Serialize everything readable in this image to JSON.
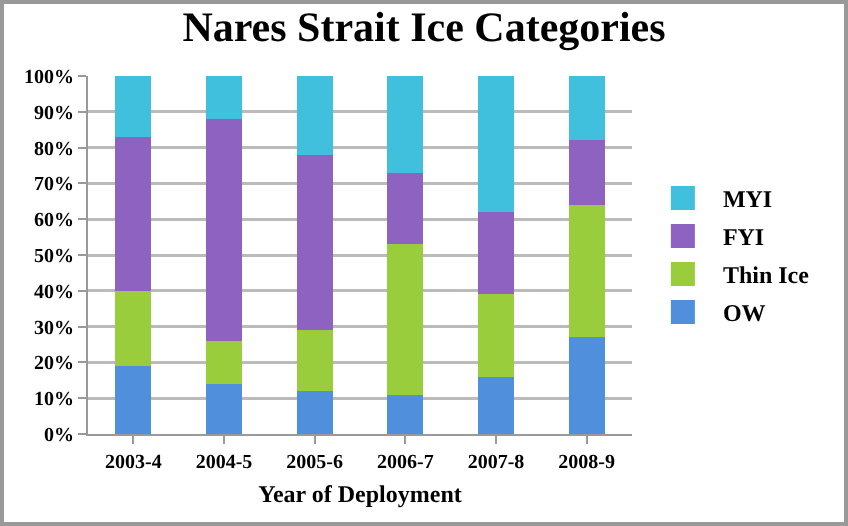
{
  "chart_data": {
    "type": "bar",
    "title": "Nares Strait Ice Categories",
    "xlabel": "Year of Deployment",
    "stacked": true,
    "categories": [
      "2003-4",
      "2004-5",
      "2005-6",
      "2006-7",
      "2007-8",
      "2008-9"
    ],
    "series": [
      {
        "name": "OW",
        "color": "#4f8fdc",
        "values": [
          19,
          14,
          12,
          11,
          16,
          27
        ]
      },
      {
        "name": "Thin Ice",
        "color": "#9acd3c",
        "values": [
          21,
          12,
          17,
          42,
          23,
          37
        ]
      },
      {
        "name": "FYI",
        "color": "#8e62c0",
        "values": [
          43,
          62,
          49,
          20,
          23,
          18
        ]
      },
      {
        "name": "MYI",
        "color": "#40c0dc",
        "values": [
          17,
          12,
          22,
          27,
          38,
          18
        ]
      }
    ],
    "ylim": [
      0,
      100
    ],
    "yticks": [
      {
        "value": 0,
        "label": "0%"
      },
      {
        "value": 10,
        "label": "10%"
      },
      {
        "value": 20,
        "label": "20%"
      },
      {
        "value": 30,
        "label": "30%"
      },
      {
        "value": 40,
        "label": "40%"
      },
      {
        "value": 50,
        "label": "50%"
      },
      {
        "value": 60,
        "label": "60%"
      },
      {
        "value": 70,
        "label": "70%"
      },
      {
        "value": 80,
        "label": "80%"
      },
      {
        "value": 90,
        "label": "90%"
      },
      {
        "value": 100,
        "label": "100%"
      }
    ],
    "grid": "y",
    "legend": "right"
  }
}
